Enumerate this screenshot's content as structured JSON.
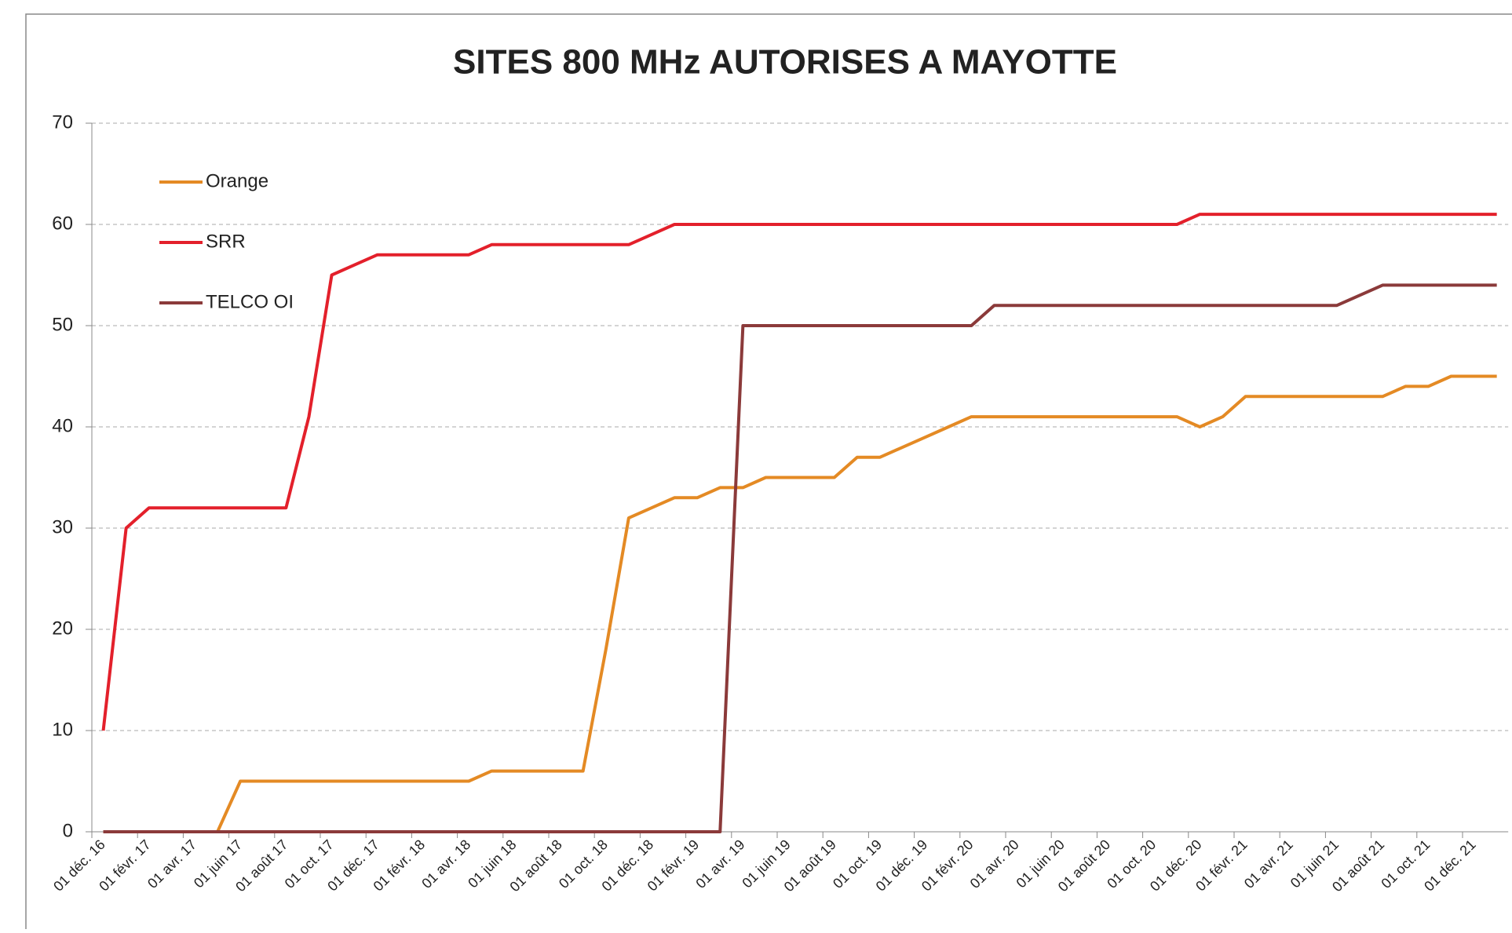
{
  "chart_data": {
    "type": "line",
    "title": "SITES 800 MHz AUTORISES A MAYOTTE",
    "categories": [
      "01 déc. 16",
      null,
      "01 févr. 17",
      null,
      "01 avr. 17",
      null,
      "01 juin 17",
      null,
      "01 août 17",
      null,
      "01 oct. 17",
      null,
      "01 déc. 17",
      null,
      "01 févr. 18",
      null,
      "01 avr. 18",
      null,
      "01 juin 18",
      null,
      "01 août 18",
      null,
      "01 oct. 18",
      null,
      "01 déc. 18",
      null,
      "01 févr. 19",
      null,
      "01 avr. 19",
      null,
      "01 juin 19",
      null,
      "01 août 19",
      null,
      "01 oct. 19",
      null,
      "01 déc. 19",
      null,
      "01 févr. 20",
      null,
      "01 avr. 20",
      null,
      "01 juin 20",
      null,
      "01 août 20",
      null,
      "01 oct. 20",
      null,
      "01 déc. 20",
      null,
      "01 févr. 21",
      null,
      "01 avr. 21",
      null,
      "01 juin 21",
      null,
      "01 août 21",
      null,
      "01 oct. 21",
      null,
      "01 déc. 21",
      null
    ],
    "series": [
      {
        "name": "Orange",
        "color": "#e48a24",
        "values": [
          0,
          0,
          0,
          0,
          0,
          0,
          5,
          5,
          5,
          5,
          5,
          5,
          5,
          5,
          5,
          5,
          5,
          6,
          6,
          6,
          6,
          6,
          18,
          31,
          32,
          33,
          33,
          34,
          34,
          35,
          35,
          35,
          35,
          37,
          37,
          38,
          39,
          40,
          41,
          41,
          41,
          41,
          41,
          41,
          41,
          41,
          41,
          41,
          40,
          41,
          43,
          43,
          43,
          43,
          43,
          43,
          43,
          44,
          44,
          45,
          45,
          45
        ]
      },
      {
        "name": "SRR",
        "color": "#e3202b",
        "values": [
          10,
          30,
          32,
          32,
          32,
          32,
          32,
          32,
          32,
          41,
          55,
          56,
          57,
          57,
          57,
          57,
          57,
          58,
          58,
          58,
          58,
          58,
          58,
          58,
          59,
          60,
          60,
          60,
          60,
          60,
          60,
          60,
          60,
          60,
          60,
          60,
          60,
          60,
          60,
          60,
          60,
          60,
          60,
          60,
          60,
          60,
          60,
          60,
          61,
          61,
          61,
          61,
          61,
          61,
          61,
          61,
          61,
          61,
          61,
          61,
          61,
          61
        ]
      },
      {
        "name": "TELCO OI",
        "color": "#8b3a3a",
        "values": [
          0,
          0,
          0,
          0,
          0,
          0,
          0,
          0,
          0,
          0,
          0,
          0,
          0,
          0,
          0,
          0,
          0,
          0,
          0,
          0,
          0,
          0,
          0,
          0,
          0,
          0,
          0,
          0,
          50,
          50,
          50,
          50,
          50,
          50,
          50,
          50,
          50,
          50,
          50,
          52,
          52,
          52,
          52,
          52,
          52,
          52,
          52,
          52,
          52,
          52,
          52,
          52,
          52,
          52,
          52,
          53,
          54,
          54,
          54,
          54,
          54,
          54
        ]
      }
    ],
    "ylim": [
      0,
      70
    ],
    "yticks": [
      0,
      10,
      20,
      30,
      40,
      50,
      60,
      70
    ],
    "grid": true,
    "legend": "upper left"
  }
}
